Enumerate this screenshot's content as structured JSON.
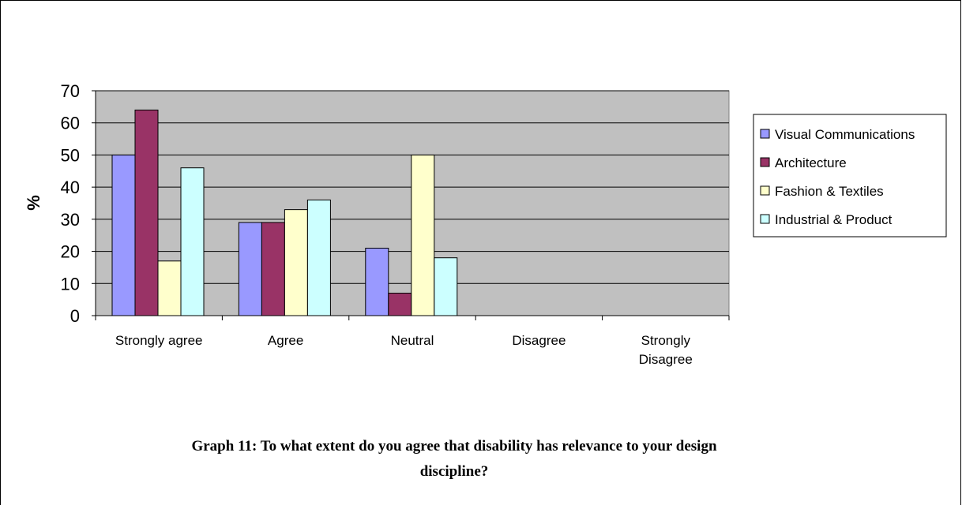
{
  "chart_data": {
    "type": "bar",
    "categories": [
      "Strongly agree",
      "Agree",
      "Neutral",
      "Disagree",
      "Strongly Disagree"
    ],
    "series": [
      {
        "name": "Visual Communications",
        "values": [
          50,
          29,
          21,
          0,
          0
        ]
      },
      {
        "name": "Architecture",
        "values": [
          64,
          29,
          7,
          0,
          0
        ]
      },
      {
        "name": "Fashion & Textiles",
        "values": [
          17,
          33,
          50,
          0,
          0
        ]
      },
      {
        "name": "Industrial & Product",
        "values": [
          46,
          36,
          18,
          0,
          0
        ]
      }
    ],
    "ylabel": "%",
    "ylim": [
      0,
      70
    ],
    "yticks": [
      0,
      10,
      20,
      30,
      40,
      50,
      60,
      70
    ],
    "grid": true,
    "legend_position": "right",
    "colors": {
      "plot_background": "#c0c0c0",
      "series": [
        "#9999ff",
        "#993366",
        "#ffffcc",
        "#ccffff"
      ]
    }
  },
  "caption": {
    "line1": "Graph 11: To what extent do you agree that disability has relevance to your design",
    "line2": "discipline?"
  }
}
